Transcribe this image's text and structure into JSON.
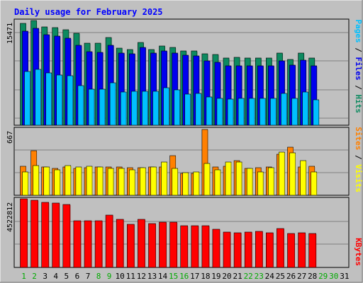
{
  "chart_data": {
    "type": "bar",
    "title": "Daily usage for February 2025",
    "days": [
      "1",
      "2",
      "3",
      "4",
      "5",
      "6",
      "7",
      "8",
      "9",
      "10",
      "11",
      "12",
      "13",
      "14",
      "15",
      "16",
      "17",
      "18",
      "19",
      "20",
      "21",
      "22",
      "23",
      "24",
      "25",
      "26",
      "27",
      "28",
      "29",
      "30",
      "31"
    ],
    "weekend_days": [
      "1",
      "2",
      "8",
      "9",
      "15",
      "16",
      "22",
      "23",
      "29",
      "30"
    ],
    "panels": [
      {
        "id": "usage",
        "max_label": "15471",
        "ymax": 15471,
        "series": [
          {
            "name": "Hits",
            "color": "#0d8a60",
            "values": [
              15200,
              15600,
              14600,
              14500,
              14200,
              13700,
              12200,
              12200,
              13000,
              11500,
              11300,
              12300,
              11300,
              11800,
              11600,
              11100,
              11100,
              10600,
              10500,
              10000,
              10100,
              10000,
              10000,
              9950,
              10700,
              9800,
              10700,
              9950,
              0,
              0,
              0
            ]
          },
          {
            "name": "Files",
            "color": "#0000ee",
            "values": [
              14000,
              14400,
              13500,
              13300,
              12900,
              11900,
              10900,
              10800,
              11900,
              10700,
              10600,
              11600,
              10700,
              11100,
              10700,
              10400,
              10300,
              9600,
              9400,
              8800,
              8800,
              8800,
              8800,
              8800,
              9600,
              8900,
              9700,
              8800,
              0,
              0,
              0
            ]
          },
          {
            "name": "Pages",
            "color": "#00c0ff",
            "values": [
              8000,
              8300,
              7800,
              7500,
              7400,
              5900,
              5400,
              5400,
              6300,
              4900,
              5000,
              5000,
              5000,
              5600,
              5300,
              4600,
              4700,
              4200,
              4000,
              3900,
              4000,
              4000,
              4000,
              4000,
              4700,
              4000,
              4900,
              3800,
              0,
              0,
              0
            ]
          }
        ]
      },
      {
        "id": "visits",
        "max_label": "667",
        "ymax": 667,
        "series": [
          {
            "name": "Sites",
            "color": "#ff8000",
            "values": [
              295,
              455,
              285,
              270,
              290,
              275,
              280,
              290,
              285,
              285,
              280,
              280,
              285,
              285,
              405,
              225,
              220,
              667,
              285,
              295,
              350,
              275,
              280,
              285,
              415,
              490,
              290,
              295,
              0,
              0,
              0
            ]
          },
          {
            "name": "Visits",
            "color": "#ffff00",
            "values": [
              240,
              300,
              285,
              255,
              300,
              290,
              295,
              285,
              275,
              270,
              260,
              280,
              290,
              340,
              270,
              230,
              240,
              320,
              260,
              335,
              340,
              275,
              240,
              280,
              440,
              430,
              350,
              240,
              0,
              0,
              0
            ]
          }
        ]
      },
      {
        "id": "kbytes",
        "max_label": "4522812",
        "ymax": 4522812,
        "series": [
          {
            "name": "KBytes",
            "color": "#ff0000",
            "values": [
              4522812,
              4450000,
              4300000,
              4220000,
              4150000,
              3080000,
              3080000,
              3080000,
              3450000,
              3150000,
              2850000,
              3180000,
              2880000,
              2980000,
              2980000,
              2770000,
              2770000,
              2770000,
              2540000,
              2350000,
              2300000,
              2320000,
              2380000,
              2300000,
              2570000,
              2260000,
              2300000,
              2240000,
              0,
              0,
              0
            ]
          }
        ]
      }
    ]
  },
  "colors": {
    "background": "#c0c0c0",
    "title": "#0000ff",
    "weekday_label": "#000000",
    "weekend_label": "#00aa00"
  }
}
